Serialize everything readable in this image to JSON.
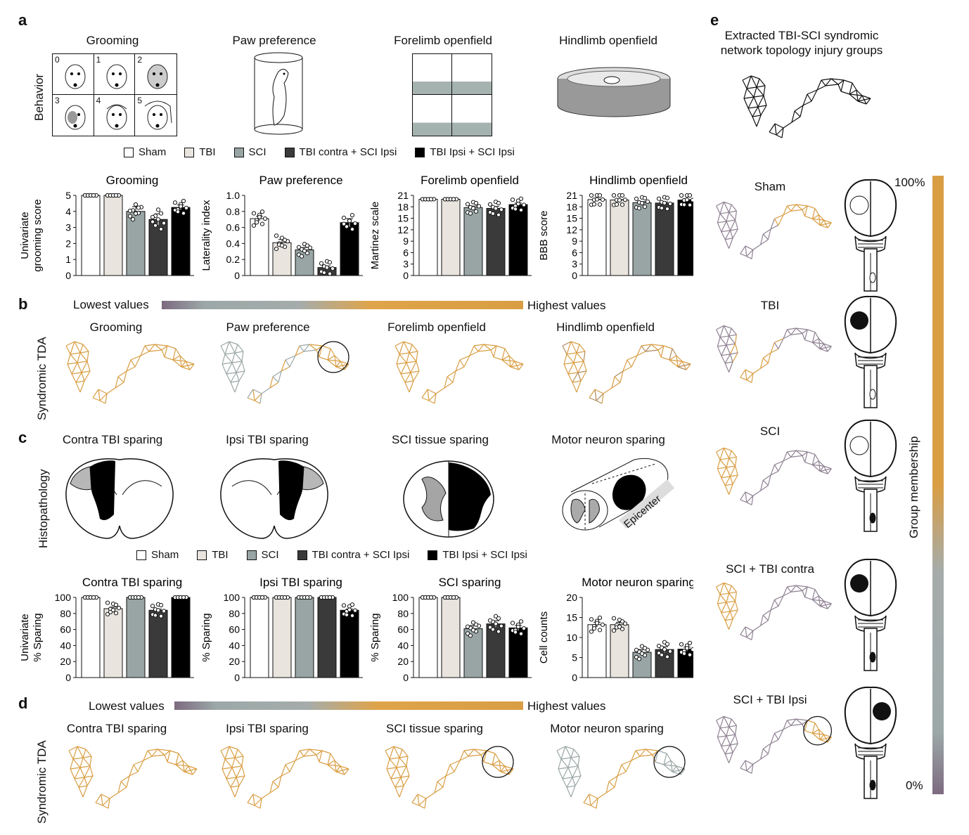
{
  "panel_labels": {
    "a": "a",
    "b": "b",
    "c": "c",
    "d": "d",
    "e": "e"
  },
  "behavior": {
    "row_label": "Behavior",
    "titles": [
      "Grooming",
      "Paw preference",
      "Forelimb openfield",
      "Hindlimb openfield"
    ],
    "grooming_scores": [
      "0",
      "1",
      "2",
      "3",
      "4",
      "5"
    ]
  },
  "legend": {
    "items": [
      "Sham",
      "TBI",
      "SCI",
      "TBI contra + SCI Ipsi",
      "TBI Ipsi + SCI Ipsi"
    ],
    "colors": [
      "#ffffff",
      "#e9e4de",
      "#98a5a4",
      "#3a3a3a",
      "#000000"
    ]
  },
  "colorbar": {
    "low": "Lowest values",
    "high": "Highest values",
    "low_color": "#7d6a80",
    "mid_color": "#a5acab",
    "high_color": "#d99e44"
  },
  "tda": {
    "row_label": "Syndromic TDA",
    "b_titles": [
      "Grooming",
      "Paw preference",
      "Forelimb openfield",
      "Hindlimb openfield"
    ],
    "d_titles": [
      "Contra TBI sparing",
      "Ipsi TBI sparing",
      "SCI tissue sparing",
      "Motor neuron sparing"
    ]
  },
  "histo": {
    "row_label": "Histopathology",
    "titles": [
      "Contra TBI sparing",
      "Ipsi TBI sparing",
      "SCI tissue sparing",
      "Motor neuron sparing"
    ],
    "epicenter": "Epicenter"
  },
  "panel_e": {
    "title": "Extracted TBI-SCI syndromic network topology injury groups",
    "groups": [
      "Sham",
      "TBI",
      "SCI",
      "SCI + TBI contra",
      "SCI + TBI Ipsi"
    ],
    "bar_label": "Group membership",
    "bar_top": "100%",
    "bar_bottom": "0%"
  },
  "chart_data": [
    {
      "type": "bar",
      "title": "Grooming",
      "ylabel": "Univariate grooming score",
      "ylim": [
        0,
        5
      ],
      "ticks": [
        "0",
        "1",
        "2",
        "3",
        "4",
        "5"
      ],
      "categories": [
        "Sham",
        "TBI",
        "SCI",
        "TBI contra + SCI Ipsi",
        "TBI Ipsi + SCI Ipsi"
      ],
      "values": [
        5,
        5,
        4.0,
        3.5,
        4.25
      ],
      "errors": [
        0,
        0,
        0.3,
        0.35,
        0.15
      ]
    },
    {
      "type": "bar",
      "title": "Paw preference",
      "ylabel": "Laterality index",
      "ylim": [
        0,
        1.0
      ],
      "ticks": [
        "0",
        "0.2",
        "0.4",
        "0.6",
        "0.8",
        "1.0"
      ],
      "categories": [
        "Sham",
        "TBI",
        "SCI",
        "TBI contra + SCI Ipsi",
        "TBI Ipsi + SCI Ipsi"
      ],
      "values": [
        0.71,
        0.41,
        0.32,
        0.1,
        0.66
      ],
      "errors": [
        0.03,
        0.04,
        0.03,
        0.02,
        0.05
      ]
    },
    {
      "type": "bar",
      "title": "Forelimb openfield",
      "ylabel": "Martinez scale",
      "ylim": [
        0,
        21
      ],
      "ticks": [
        "0",
        "3",
        "6",
        "9",
        "12",
        "15",
        "18",
        "21"
      ],
      "categories": [
        "Sham",
        "TBI",
        "SCI",
        "TBI contra + SCI Ipsi",
        "TBI Ipsi + SCI Ipsi"
      ],
      "values": [
        20,
        20,
        17.8,
        17.6,
        18.6
      ],
      "errors": [
        0,
        0,
        0.4,
        0.5,
        0.4
      ]
    },
    {
      "type": "bar",
      "title": "Hindlimb openfield",
      "ylabel": "BBB score",
      "ylim": [
        0,
        21
      ],
      "ticks": [
        "0",
        "3",
        "6",
        "9",
        "12",
        "15",
        "18",
        "21"
      ],
      "categories": [
        "Sham",
        "TBI",
        "SCI",
        "TBI contra + SCI Ipsi",
        "TBI Ipsi + SCI Ipsi"
      ],
      "values": [
        19.9,
        19.8,
        19.1,
        19.0,
        19.8
      ],
      "errors": [
        0.1,
        0.1,
        0.3,
        0.3,
        0.1
      ]
    },
    {
      "type": "bar",
      "title": "Contra TBI sparing",
      "ylabel": "Univariate % Sparing",
      "ylim": [
        0,
        100
      ],
      "ticks": [
        "0",
        "20",
        "40",
        "60",
        "80",
        "100"
      ],
      "categories": [
        "Sham",
        "TBI",
        "SCI",
        "TBI contra + SCI Ipsi",
        "TBI Ipsi + SCI Ipsi"
      ],
      "values": [
        100,
        86,
        100,
        84,
        100
      ],
      "errors": [
        0,
        2,
        0,
        1.5,
        0
      ]
    },
    {
      "type": "bar",
      "title": "Ipsi TBI sparing",
      "ylabel": "% Sparing",
      "ylim": [
        0,
        100
      ],
      "ticks": [
        "0",
        "20",
        "40",
        "60",
        "80",
        "100"
      ],
      "categories": [
        "Sham",
        "TBI",
        "SCI",
        "TBI contra + SCI Ipsi",
        "TBI Ipsi + SCI Ipsi"
      ],
      "values": [
        100,
        100,
        100,
        100,
        84
      ],
      "errors": [
        0,
        0,
        0,
        0,
        1.5
      ]
    },
    {
      "type": "bar",
      "title": "SCI sparing",
      "ylabel": "% Sparing",
      "ylim": [
        0,
        100
      ],
      "ticks": [
        "0",
        "20",
        "40",
        "60",
        "80",
        "100"
      ],
      "categories": [
        "Sham",
        "TBI",
        "SCI",
        "TBI contra + SCI Ipsi",
        "TBI Ipsi + SCI Ipsi"
      ],
      "values": [
        100,
        100,
        61,
        67,
        62
      ],
      "errors": [
        0,
        0,
        4,
        4,
        3
      ]
    },
    {
      "type": "bar",
      "title": "Motor neuron sparing",
      "ylabel": "Cell counts",
      "ylim": [
        0,
        20
      ],
      "ticks": [
        "0",
        "5",
        "10",
        "15",
        "20"
      ],
      "categories": [
        "Sham",
        "TBI",
        "SCI",
        "TBI contra + SCI Ipsi",
        "TBI Ipsi + SCI Ipsi"
      ],
      "values": [
        13.2,
        13.2,
        6.3,
        7.0,
        7.1
      ],
      "errors": [
        0.6,
        0.6,
        0.7,
        0.7,
        0.5
      ]
    }
  ]
}
